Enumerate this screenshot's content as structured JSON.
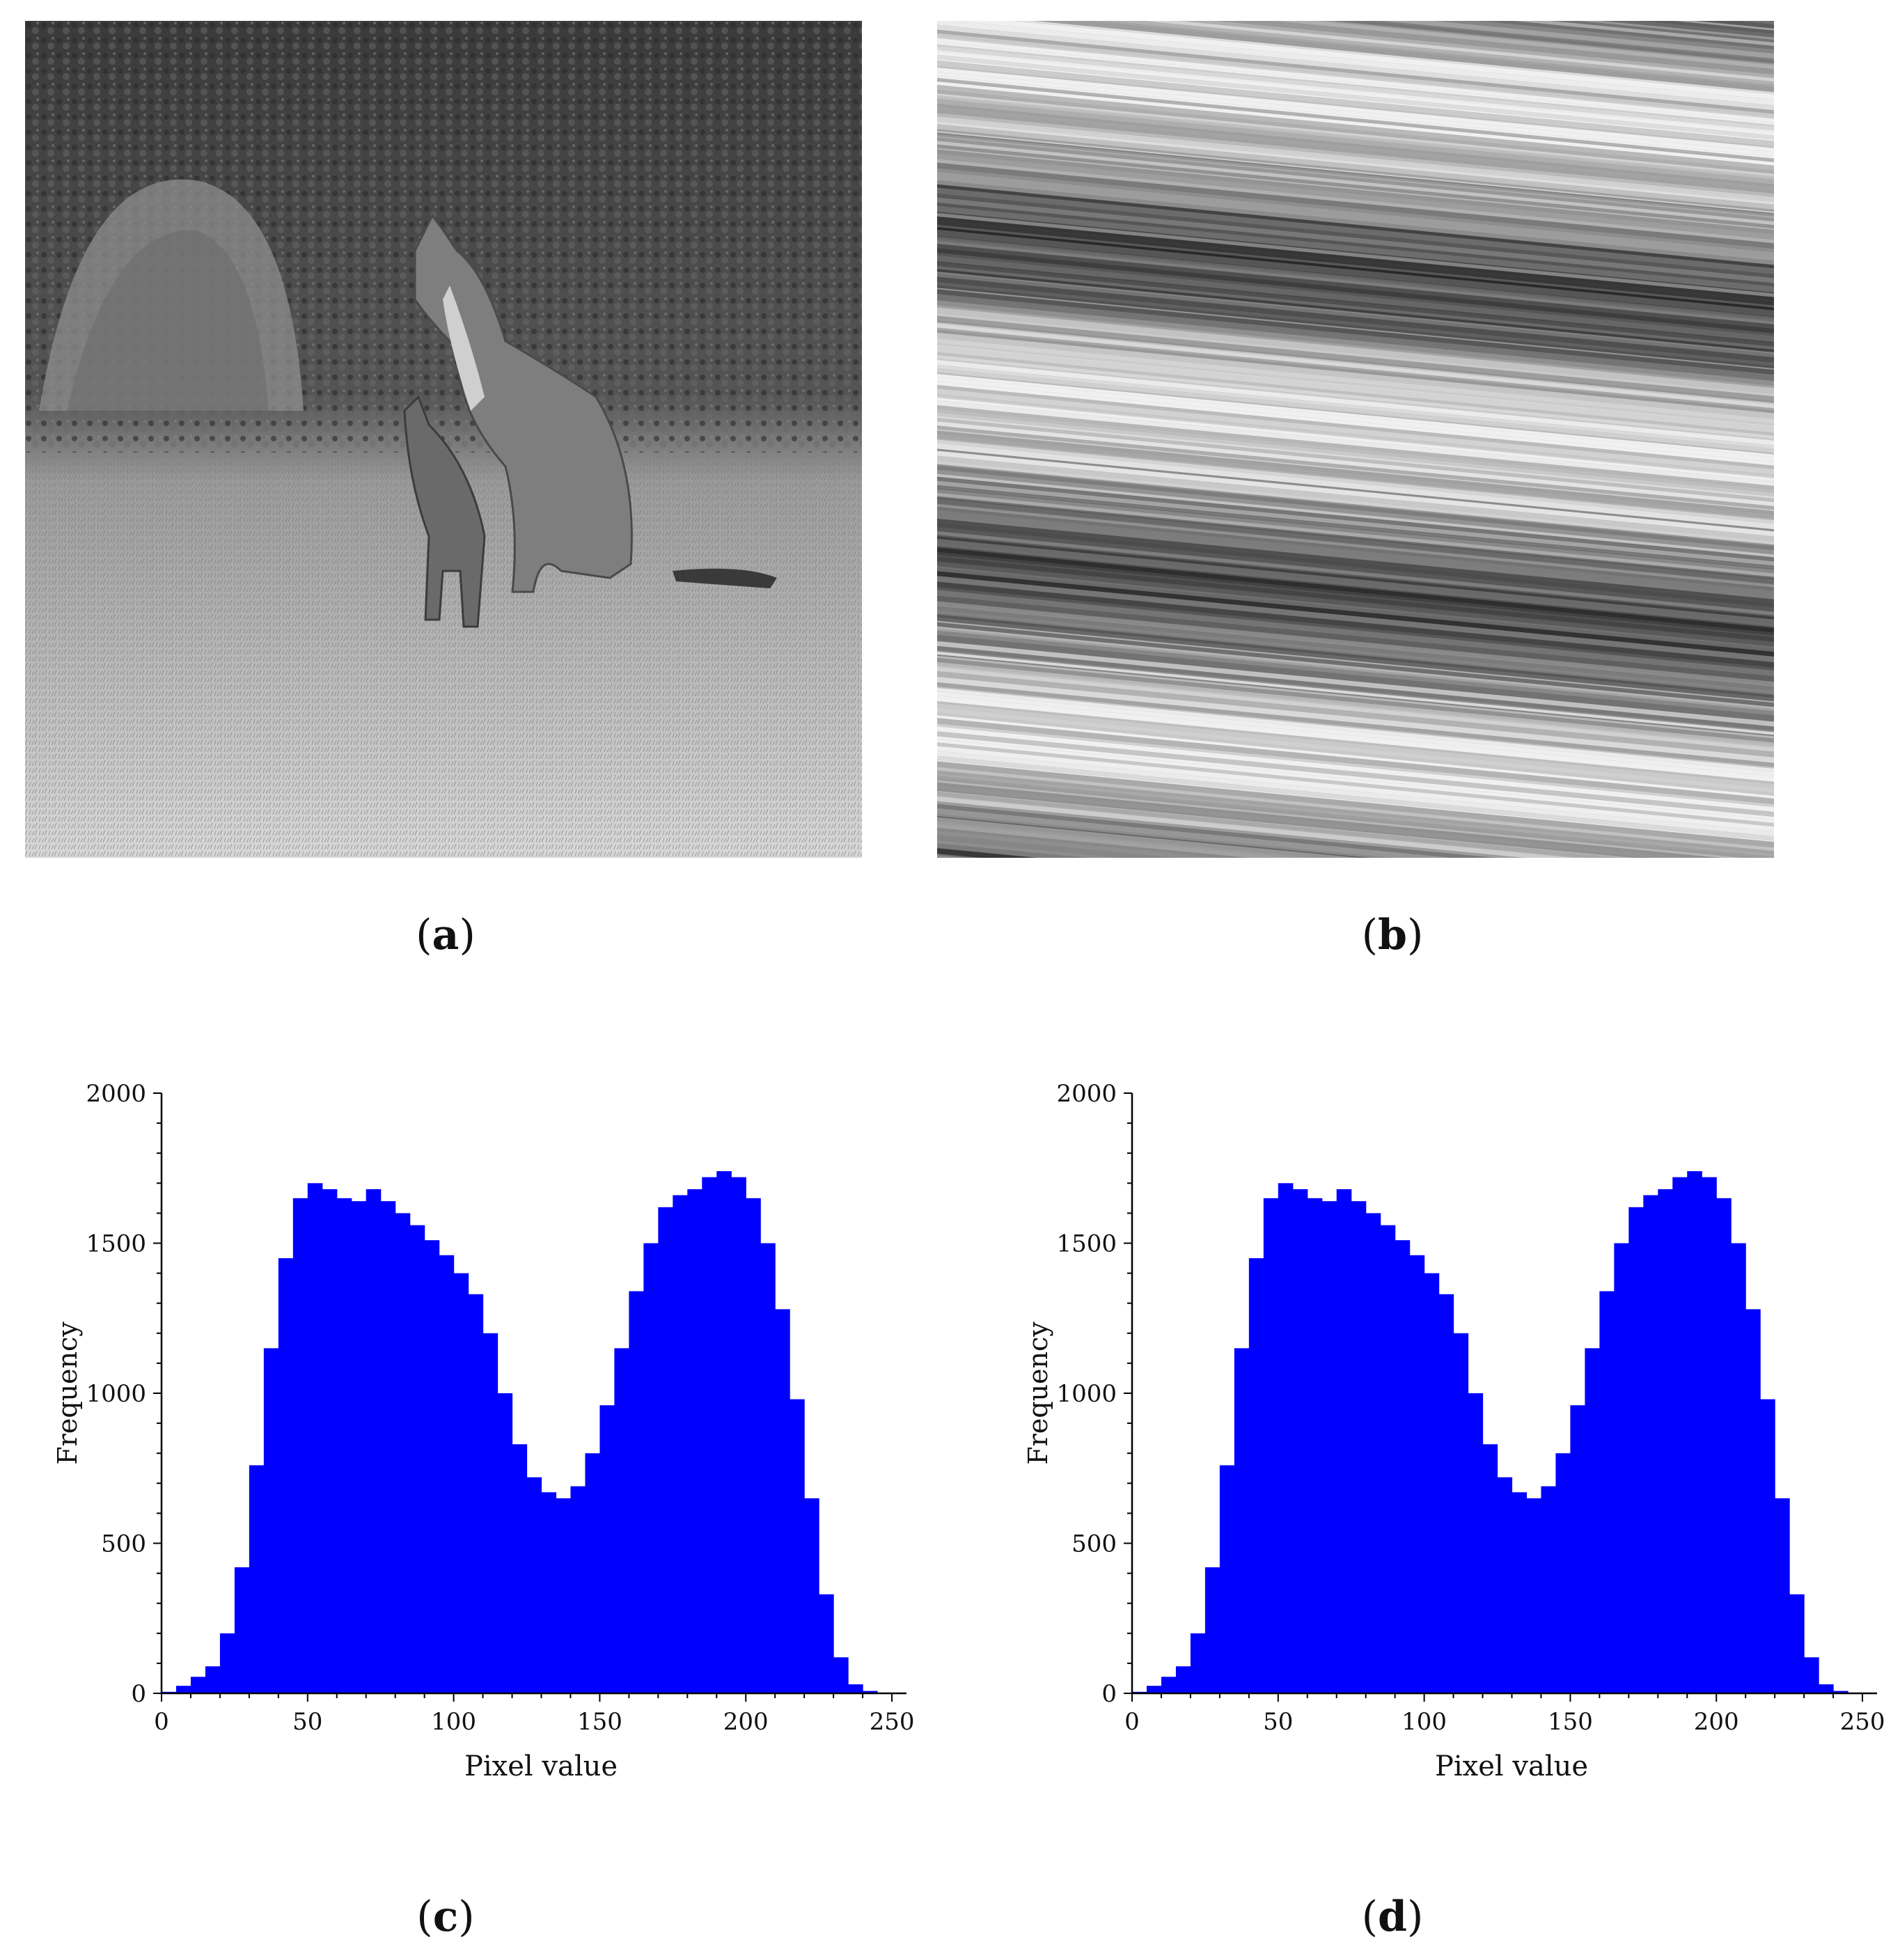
{
  "figure": {
    "captions": [
      "a",
      "b",
      "c",
      "d"
    ],
    "panel_a": {
      "description_icon": "kangaroo-grayscale-photo-icon"
    },
    "panel_b": {
      "description_icon": "encrypted-noise-image-icon"
    }
  },
  "colors": {
    "bar": "#0000ff",
    "axis": "#000000"
  },
  "chart_data": [
    {
      "panel": "c",
      "type": "bar",
      "title": "",
      "xlabel": "Pixel value",
      "ylabel": "Frequency",
      "xlim": [
        0,
        255
      ],
      "ylim": [
        0,
        2000
      ],
      "xticks": [
        0,
        50,
        100,
        150,
        200,
        250
      ],
      "yticks": [
        0,
        500,
        1000,
        1500,
        2000
      ],
      "grid": false,
      "x": [
        5,
        10,
        15,
        20,
        25,
        30,
        35,
        40,
        45,
        50,
        55,
        60,
        65,
        70,
        75,
        80,
        85,
        90,
        95,
        100,
        105,
        110,
        115,
        120,
        125,
        130,
        135,
        140,
        145,
        150,
        155,
        160,
        165,
        170,
        175,
        180,
        185,
        190,
        195,
        200,
        205,
        210,
        215,
        220,
        225,
        230,
        235,
        240,
        245,
        250
      ],
      "values": [
        5,
        25,
        55,
        90,
        200,
        420,
        760,
        1150,
        1450,
        1650,
        1700,
        1680,
        1650,
        1640,
        1680,
        1640,
        1600,
        1560,
        1510,
        1460,
        1400,
        1330,
        1200,
        1000,
        830,
        720,
        670,
        650,
        690,
        800,
        960,
        1150,
        1340,
        1500,
        1620,
        1660,
        1680,
        1720,
        1740,
        1720,
        1650,
        1500,
        1280,
        980,
        650,
        330,
        120,
        30,
        8,
        0
      ]
    },
    {
      "panel": "d",
      "type": "bar",
      "title": "",
      "xlabel": "Pixel value",
      "ylabel": "Frequency",
      "xlim": [
        0,
        255
      ],
      "ylim": [
        0,
        2000
      ],
      "xticks": [
        0,
        50,
        100,
        150,
        200,
        250
      ],
      "yticks": [
        0,
        500,
        1000,
        1500,
        2000
      ],
      "grid": false,
      "x": [
        5,
        10,
        15,
        20,
        25,
        30,
        35,
        40,
        45,
        50,
        55,
        60,
        65,
        70,
        75,
        80,
        85,
        90,
        95,
        100,
        105,
        110,
        115,
        120,
        125,
        130,
        135,
        140,
        145,
        150,
        155,
        160,
        165,
        170,
        175,
        180,
        185,
        190,
        195,
        200,
        205,
        210,
        215,
        220,
        225,
        230,
        235,
        240,
        245,
        250
      ],
      "values": [
        5,
        25,
        55,
        90,
        200,
        420,
        760,
        1150,
        1450,
        1650,
        1700,
        1680,
        1650,
        1640,
        1680,
        1640,
        1600,
        1560,
        1510,
        1460,
        1400,
        1330,
        1200,
        1000,
        830,
        720,
        670,
        650,
        690,
        800,
        960,
        1150,
        1340,
        1500,
        1620,
        1660,
        1680,
        1720,
        1740,
        1720,
        1650,
        1500,
        1280,
        980,
        650,
        330,
        120,
        30,
        8,
        0
      ]
    }
  ]
}
